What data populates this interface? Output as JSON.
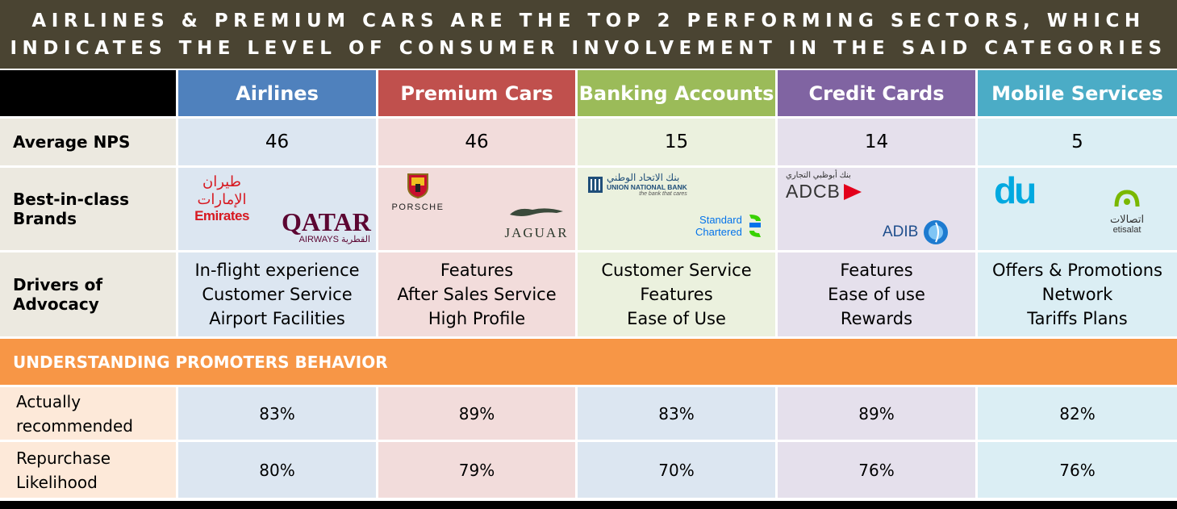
{
  "title": {
    "line1": "AIRLINES & PREMIUM CARS ARE THE TOP 2 PERFORMING SECTORS, WHICH",
    "line2": "INDICATES THE LEVEL OF CONSUMER INVOLVEMENT IN THE SAID CATEGORIES"
  },
  "colors": {
    "title_bg": "#4a4432",
    "airlines": "#4f81bd",
    "premium_cars": "#c0504d",
    "banking": "#9bbb59",
    "credit_cards": "#8064a2",
    "mobile": "#4bacc6",
    "band": "#f79646"
  },
  "columns": [
    "Airlines",
    "Premium Cars",
    "Banking Accounts",
    "Credit Cards",
    "Mobile Services"
  ],
  "rows": {
    "nps_label": "Average NPS",
    "nps": [
      "46",
      "46",
      "15",
      "14",
      "5"
    ],
    "brands_label_1": "Best-in-class",
    "brands_label_2": "Brands",
    "drivers_label_1": "Drivers of",
    "drivers_label_2": "Advocacy",
    "drivers": [
      [
        "In-flight experience",
        "Customer Service",
        "Airport Facilities"
      ],
      [
        "Features",
        "After Sales Service",
        "High Profile"
      ],
      [
        "Customer Service",
        "Features",
        "Ease of Use"
      ],
      [
        "Features",
        "Ease of use",
        "Rewards"
      ],
      [
        "Offers & Promotions",
        "Network",
        "Tariffs Plans"
      ]
    ]
  },
  "brands": {
    "emirates": "Emirates",
    "emirates_ar": "طيران الإمارات",
    "qatar": "QATAR",
    "qatar_sub": "AIRWAYS القطرية",
    "porsche": "PORSCHE",
    "jaguar": "JAGUAR",
    "unb_ar": "بنك الاتحاد الوطني",
    "unb": "UNION NATIONAL BANK",
    "unb_tag": "the bank that cares",
    "sc1": "Standard",
    "sc2": "Chartered",
    "adcb_ar": "بنك أبوظبي التجاري",
    "adcb": "ADCB",
    "adib": "ADIB",
    "du": "du",
    "etisalat_ar": "اتصالات",
    "etisalat": "etisalat"
  },
  "promoters": {
    "band_label": "UNDERSTANDING PROMOTERS BEHAVIOR",
    "recommended_label_1": "Actually",
    "recommended_label_2": "recommended",
    "recommended": [
      "83%",
      "89%",
      "83%",
      "89%",
      "82%"
    ],
    "repurchase_label_1": "Repurchase",
    "repurchase_label_2": "Likelihood",
    "repurchase": [
      "80%",
      "79%",
      "70%",
      "76%",
      "76%"
    ]
  }
}
